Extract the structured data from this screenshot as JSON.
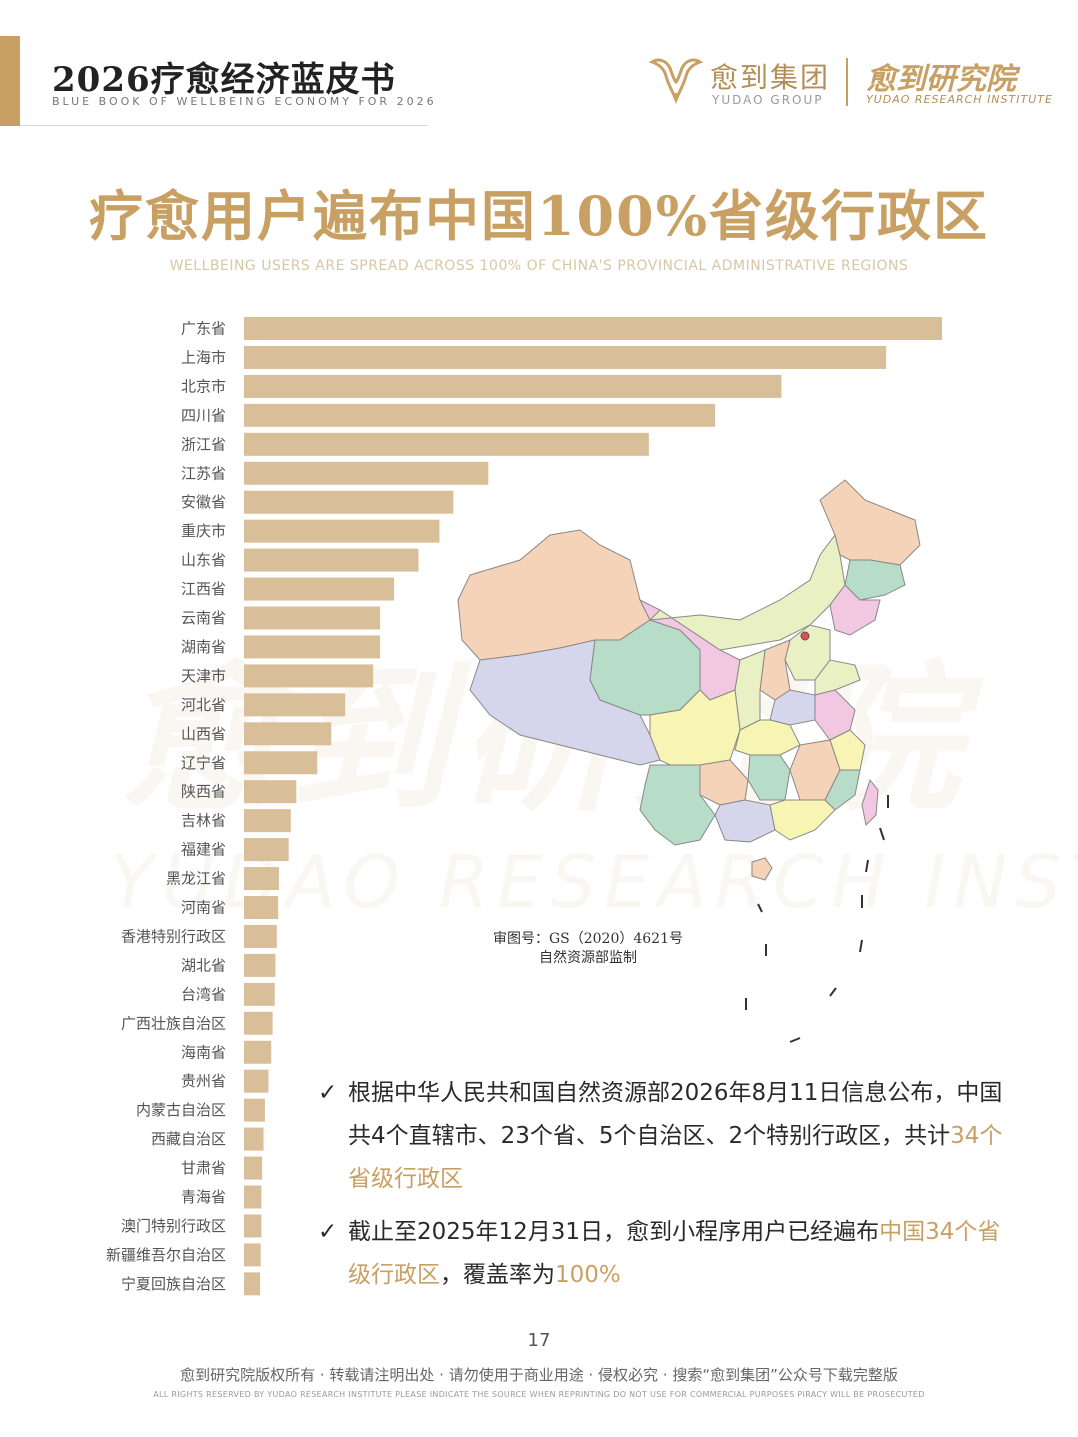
{
  "header": {
    "title": "2026疗愈经济蓝皮书",
    "subtitle": "BLUE BOOK OF WELLBEING ECONOMY FOR 2026",
    "brand_cn": "愈到集团",
    "brand_en": "YUDAO GROUP",
    "institute_cn": "愈到研究院",
    "institute_en": "YUDAO RESEARCH INSTITUTE",
    "accent_color": "#c9a063"
  },
  "title": "疗愈用户遍布中国100%省级行政区",
  "title_en": "WELLBEING USERS ARE SPREAD ACROSS 100% OF CHINA'S PROVINCIAL ADMINISTRATIVE REGIONS",
  "watermark": {
    "cn": "愈到研究院",
    "en": "YUDAO RESEARCH INSTITUTE"
  },
  "map": {
    "approval_no": "审图号：GS（2020）4621号",
    "supervisor": "自然资源部监制"
  },
  "bullets": [
    {
      "segments": [
        {
          "text": "根据中华人民共和国自然资源部2026年8月11日信息公布，中国共4个直辖市、23个省、5个自治区、2个特别行政区，共计",
          "hl": false
        },
        {
          "text": "34个省级行政区",
          "hl": true
        }
      ]
    },
    {
      "segments": [
        {
          "text": "截止至2025年12月31日，愈到小程序用户已经遍布",
          "hl": false
        },
        {
          "text": "中国34个省级行政区",
          "hl": true
        },
        {
          "text": "，覆盖率为",
          "hl": false
        },
        {
          "text": "100%",
          "hl": true
        }
      ]
    }
  ],
  "footer": {
    "page": "17",
    "cn": "愈到研究院版权所有 · 转载请注明出处 · 请勿使用于商业用途 · 侵权必究 · 搜索“愈到集团”公众号下载完整版",
    "en": "ALL RIGHTS RESERVED BY YUDAO RESEARCH INSTITUTE  PLEASE INDICATE THE SOURCE WHEN REPRINTING  DO NOT USE FOR COMMERCIAL PURPOSES  PIRACY WILL BE PROSECUTED"
  },
  "chart_data": {
    "type": "bar",
    "orientation": "horizontal",
    "bar_color": "#d9bf99",
    "xlim": [
      0,
      100
    ],
    "categories": [
      "广东省",
      "上海市",
      "北京市",
      "四川省",
      "浙江省",
      "江苏省",
      "安徽省",
      "重庆市",
      "山东省",
      "江西省",
      "云南省",
      "湖南省",
      "天津市",
      "河北省",
      "山西省",
      "辽宁省",
      "陕西省",
      "吉林省",
      "福建省",
      "黑龙江省",
      "河南省",
      "香港特别行政区",
      "湖北省",
      "台湾省",
      "广西壮族自治区",
      "海南省",
      "贵州省",
      "内蒙古自治区",
      "西藏自治区",
      "甘肃省",
      "青海省",
      "澳门特别行政区",
      "新疆维吾尔自治区",
      "宁夏回族自治区"
    ],
    "values": [
      100,
      92,
      77,
      67.5,
      58,
      35,
      30,
      28,
      25,
      21.5,
      19.5,
      19.5,
      18.5,
      14.5,
      12.5,
      10.5,
      7.5,
      6.7,
      6.4,
      5,
      4.9,
      4.7,
      4.5,
      4.4,
      4.1,
      3.9,
      3.5,
      3,
      2.8,
      2.6,
      2.5,
      2.5,
      2.4,
      2.3
    ]
  }
}
